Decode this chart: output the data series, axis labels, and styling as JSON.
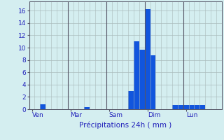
{
  "title": "Précipitations 24h ( mm )",
  "bar_color": "#1155dd",
  "background_color": "#d4eef0",
  "grid_color": "#aabbbb",
  "vline_color": "#555566",
  "text_color": "#2222bb",
  "axis_color": "#555566",
  "ylim": [
    0,
    17.5
  ],
  "yticks": [
    0,
    2,
    4,
    6,
    8,
    10,
    12,
    14,
    16
  ],
  "day_labels": [
    "Ven",
    "Mar",
    "Sam",
    "Dim",
    "Lun"
  ],
  "day_positions_label": [
    0,
    7,
    14,
    21,
    28
  ],
  "n_bars": 35,
  "bars": [
    0.0,
    0.0,
    0.75,
    0.0,
    0.0,
    0.0,
    0.0,
    0.0,
    0.0,
    0.0,
    0.35,
    0.0,
    0.0,
    0.0,
    0.0,
    0.0,
    0.0,
    0.0,
    3.0,
    11.0,
    9.7,
    16.3,
    8.7,
    0.0,
    0.0,
    0.0,
    0.65,
    0.65,
    0.65,
    0.65,
    0.65,
    0.65,
    0.0,
    0.0,
    0.0
  ]
}
